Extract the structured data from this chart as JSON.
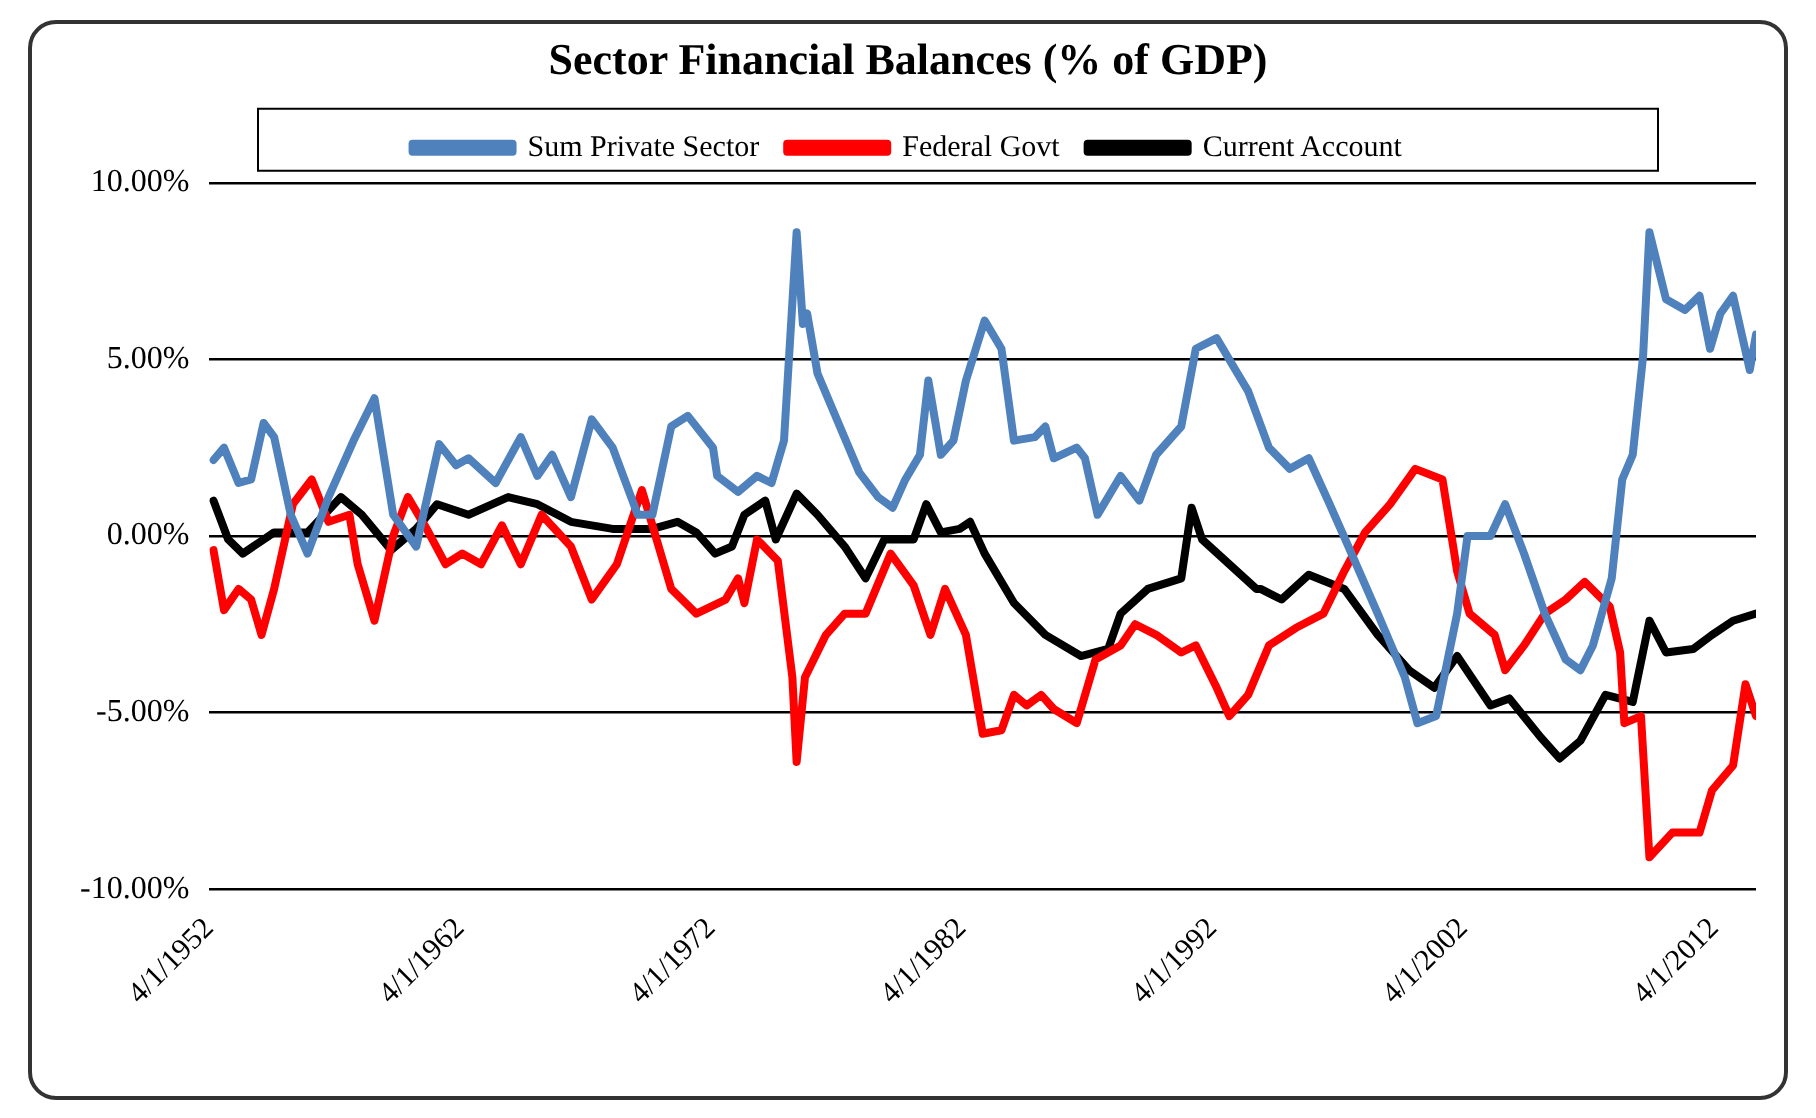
{
  "chart_data": {
    "type": "line",
    "title": "Sector Financial Balances (% of GDP)",
    "xlim": [
      "1952-04-01",
      "2013-12-01"
    ],
    "xticks": [
      {
        "value": "1952-04-01",
        "label": "4/1/1952"
      },
      {
        "value": "1962-04-01",
        "label": "4/1/1962"
      },
      {
        "value": "1972-04-01",
        "label": "4/1/1972"
      },
      {
        "value": "1982-04-01",
        "label": "4/1/1982"
      },
      {
        "value": "1992-04-01",
        "label": "4/1/1992"
      },
      {
        "value": "2002-04-01",
        "label": "4/1/2002"
      },
      {
        "value": "2012-04-01",
        "label": "4/1/2012"
      }
    ],
    "ylim": [
      -10,
      10
    ],
    "yticks": [
      {
        "value": -10,
        "label": "-10.00%"
      },
      {
        "value": -5,
        "label": "-5.00%"
      },
      {
        "value": 0,
        "label": "0.00%"
      },
      {
        "value": 5,
        "label": "5.00%"
      },
      {
        "value": 10,
        "label": "10.00%"
      }
    ],
    "grid": "y",
    "legend": "top",
    "marker": "none",
    "line_style": "solid",
    "series": [
      {
        "name": "Sum Private Sector",
        "color": "#4f81bd",
        "x": [
          "1952-06",
          "1952-11",
          "1953-06",
          "1953-12",
          "1954-06",
          "1954-11",
          "1955-07",
          "1956-03",
          "1957-01",
          "1958-01",
          "1958-11",
          "1959-08",
          "1960-07",
          "1961-06",
          "1962-02",
          "1962-08",
          "1963-09",
          "1964-09",
          "1965-05",
          "1965-12",
          "1966-09",
          "1967-07",
          "1968-05",
          "1969-05",
          "1969-12",
          "1970-09",
          "1971-05",
          "1972-05",
          "1972-07",
          "1973-05",
          "1974-02",
          "1974-09",
          "1975-03",
          "1975-09",
          "1975-12",
          "1976-02",
          "1976-07",
          "1977-05",
          "1978-03",
          "1978-12",
          "1979-07",
          "1980-01",
          "1980-08",
          "1980-12",
          "1981-06",
          "1981-12",
          "1982-06",
          "1983-03",
          "1983-11",
          "1984-05",
          "1985-03",
          "1985-08",
          "1985-12",
          "1986-11",
          "1987-03",
          "1987-09",
          "1988-08",
          "1989-05",
          "1990-01",
          "1991-01",
          "1991-08",
          "1992-06",
          "1993-03",
          "1993-09",
          "1994-07",
          "1995-05",
          "1996-02",
          "1996-12",
          "1997-09",
          "1998-11",
          "1999-12",
          "2000-06",
          "2001-03",
          "2002-01",
          "2002-06",
          "2003-05",
          "2003-12",
          "2004-09",
          "2005-07",
          "2006-05",
          "2006-12",
          "2007-06",
          "2008-03",
          "2008-08",
          "2009-01",
          "2009-06",
          "2009-09",
          "2010-05",
          "2011-02",
          "2011-09",
          "2012-02",
          "2012-07",
          "2013-01",
          "2013-09",
          "2013-12"
        ],
        "values": [
          2.15,
          2.5,
          1.5,
          1.6,
          3.2,
          2.8,
          0.6,
          -0.5,
          1.1,
          2.7,
          3.9,
          0.6,
          -0.3,
          2.6,
          2.0,
          2.2,
          1.5,
          2.8,
          1.7,
          2.3,
          1.1,
          3.3,
          2.5,
          0.6,
          0.6,
          3.1,
          3.4,
          2.5,
          1.7,
          1.25,
          1.7,
          1.5,
          2.7,
          8.6,
          6.0,
          6.3,
          4.6,
          3.2,
          1.8,
          1.1,
          0.8,
          1.6,
          2.3,
          4.4,
          2.3,
          2.7,
          4.4,
          6.1,
          5.3,
          2.7,
          2.8,
          3.1,
          2.2,
          2.5,
          2.2,
          0.6,
          1.7,
          1.0,
          2.3,
          3.1,
          5.3,
          5.6,
          4.7,
          4.1,
          2.5,
          1.9,
          2.2,
          0.9,
          -0.3,
          -2.2,
          -4.0,
          -5.3,
          -5.1,
          -2.2,
          0.0,
          0.0,
          0.9,
          -0.5,
          -2.2,
          -3.5,
          -3.8,
          -3.1,
          -1.2,
          1.6,
          2.3,
          5.1,
          8.6,
          6.7,
          6.4,
          6.8,
          5.3,
          6.3,
          6.8,
          4.7,
          5.7
        ]
      },
      {
        "name": "Federal Govt",
        "color": "#ff0000",
        "x": [
          "1952-06",
          "1952-11",
          "1953-06",
          "1953-12",
          "1954-05",
          "1954-11",
          "1955-08",
          "1956-05",
          "1957-01",
          "1957-11",
          "1958-03",
          "1958-11",
          "1959-08",
          "1960-03",
          "1960-12",
          "1961-09",
          "1962-05",
          "1963-02",
          "1963-12",
          "1964-09",
          "1965-07",
          "1966-09",
          "1967-07",
          "1968-07",
          "1969-07",
          "1970-09",
          "1971-09",
          "1972-11",
          "1973-05",
          "1973-08",
          "1974-02",
          "1974-12",
          "1975-07",
          "1975-09",
          "1976-01",
          "1976-11",
          "1977-08",
          "1978-06",
          "1979-06",
          "1980-05",
          "1981-01",
          "1981-08",
          "1982-06",
          "1983-02",
          "1983-11",
          "1984-05",
          "1984-11",
          "1985-06",
          "1985-12",
          "1986-11",
          "1987-08",
          "1988-08",
          "1989-03",
          "1990-01",
          "1991-01",
          "1991-08",
          "1992-06",
          "1992-12",
          "1993-09",
          "1994-07",
          "1995-08",
          "1996-09",
          "1997-07",
          "1998-05",
          "1999-05",
          "2000-05",
          "2001-06",
          "2002-01",
          "2002-07",
          "2003-07",
          "2003-12",
          "2004-09",
          "2005-07",
          "2006-05",
          "2007-02",
          "2008-02",
          "2008-07",
          "2008-09",
          "2009-05",
          "2009-09",
          "2010-08",
          "2011-09",
          "2012-03",
          "2013-01",
          "2013-07",
          "2013-12"
        ],
        "values": [
          -0.4,
          -2.1,
          -1.5,
          -1.8,
          -2.8,
          -1.5,
          0.9,
          1.6,
          0.4,
          0.6,
          -0.8,
          -2.4,
          0.0,
          1.1,
          0.2,
          -0.8,
          -0.5,
          -0.8,
          0.3,
          -0.8,
          0.6,
          -0.3,
          -1.8,
          -0.8,
          1.3,
          -1.5,
          -2.2,
          -1.8,
          -1.2,
          -1.9,
          -0.1,
          -0.7,
          -4.0,
          -6.4,
          -4.0,
          -2.8,
          -2.2,
          -2.2,
          -0.5,
          -1.4,
          -2.8,
          -1.5,
          -2.8,
          -5.6,
          -5.5,
          -4.5,
          -4.8,
          -4.5,
          -4.9,
          -5.3,
          -3.5,
          -3.1,
          -2.5,
          -2.8,
          -3.3,
          -3.1,
          -4.3,
          -5.1,
          -4.5,
          -3.1,
          -2.6,
          -2.2,
          -1.0,
          0.1,
          0.9,
          1.9,
          1.6,
          -1.0,
          -2.2,
          -2.8,
          -3.8,
          -3.1,
          -2.2,
          -1.8,
          -1.3,
          -2.0,
          -3.3,
          -5.3,
          -5.1,
          -9.1,
          -8.4,
          -8.4,
          -7.2,
          -6.5,
          -4.2,
          -5.1
        ]
      },
      {
        "name": "Current Account",
        "color": "#000000",
        "x": [
          "1952-06",
          "1953-01",
          "1953-08",
          "1954-11",
          "1956-03",
          "1957-07",
          "1958-05",
          "1959-07",
          "1960-07",
          "1961-05",
          "1962-08",
          "1964-03",
          "1965-05",
          "1966-09",
          "1968-05",
          "1969-12",
          "1970-12",
          "1971-09",
          "1972-06",
          "1973-02",
          "1973-08",
          "1974-06",
          "1974-11",
          "1975-09",
          "1976-07",
          "1977-08",
          "1978-06",
          "1979-03",
          "1980-05",
          "1980-11",
          "1981-06",
          "1982-03",
          "1982-08",
          "1983-03",
          "1984-05",
          "1985-08",
          "1987-01",
          "1988-02",
          "1988-08",
          "1989-09",
          "1991-01",
          "1991-06",
          "1991-11",
          "1992-12",
          "1994-01",
          "1994-03",
          "1995-01",
          "1996-02",
          "1997-07",
          "1998-11",
          "2000-02",
          "2001-02",
          "2002-01",
          "2003-05",
          "2004-02",
          "2005-05",
          "2006-02",
          "2006-12",
          "2007-12",
          "2009-01",
          "2009-09",
          "2010-05",
          "2011-06",
          "2012-03",
          "2013-01",
          "2013-12"
        ],
        "values": [
          1.0,
          -0.1,
          -0.5,
          0.1,
          0.1,
          1.1,
          0.6,
          -0.4,
          0.2,
          0.9,
          0.6,
          1.1,
          0.9,
          0.4,
          0.2,
          0.2,
          0.4,
          0.1,
          -0.5,
          -0.3,
          0.6,
          1.0,
          -0.1,
          1.2,
          0.6,
          -0.3,
          -1.2,
          -0.1,
          -0.1,
          0.9,
          0.1,
          0.2,
          0.4,
          -0.5,
          -1.9,
          -2.8,
          -3.4,
          -3.2,
          -2.2,
          -1.5,
          -1.2,
          0.8,
          -0.1,
          -0.8,
          -1.5,
          -1.5,
          -1.8,
          -1.1,
          -1.5,
          -2.8,
          -3.8,
          -4.3,
          -3.4,
          -4.8,
          -4.6,
          -5.7,
          -6.3,
          -5.8,
          -4.5,
          -4.7,
          -2.4,
          -3.3,
          -3.2,
          -2.8,
          -2.4,
          -2.2
        ]
      }
    ]
  }
}
